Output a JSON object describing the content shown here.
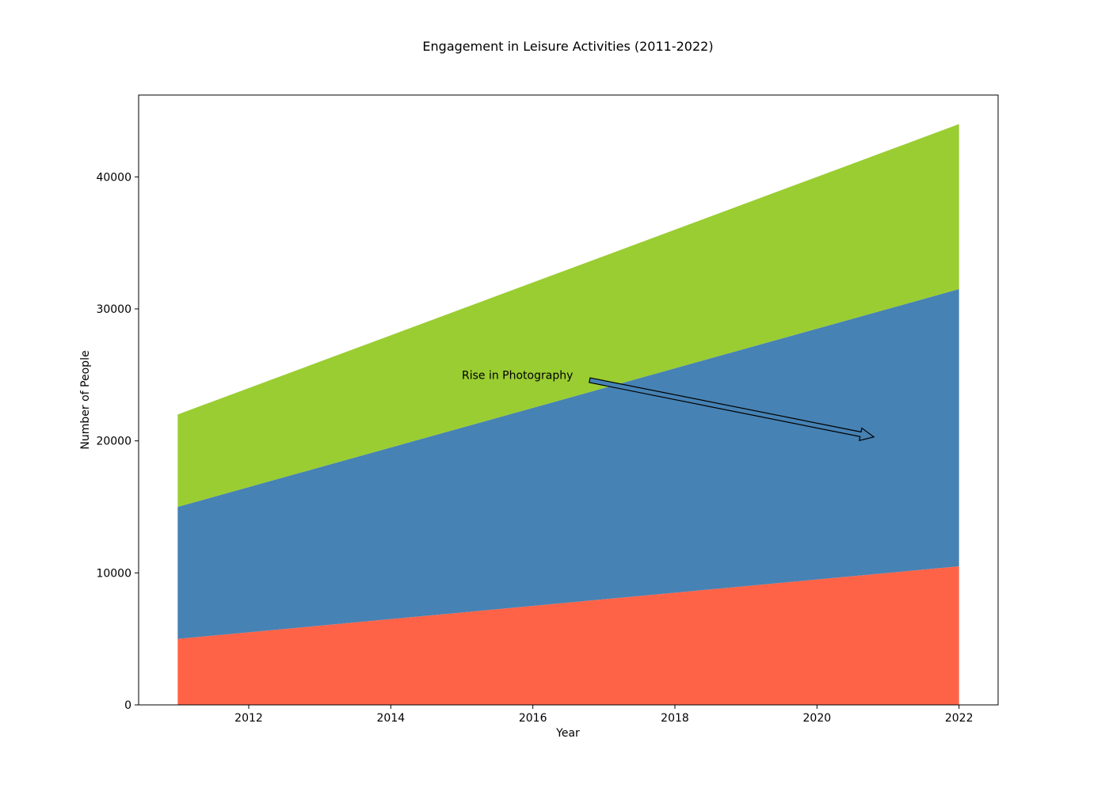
{
  "chart_data": {
    "type": "area",
    "stacked": true,
    "title": "Engagement in Leisure Activities (2011-2022)",
    "xlabel": "Year",
    "ylabel": "Number of People",
    "x": [
      2011,
      2012,
      2013,
      2014,
      2015,
      2016,
      2017,
      2018,
      2019,
      2020,
      2021,
      2022
    ],
    "xlim": [
      2010.45,
      2022.55
    ],
    "ylim": [
      0,
      46200
    ],
    "xticks": [
      2012,
      2014,
      2016,
      2018,
      2020,
      2022
    ],
    "yticks": [
      0,
      10000,
      20000,
      30000,
      40000
    ],
    "grid": false,
    "series": [
      {
        "color": "#FF6347",
        "values": [
          5000,
          5500,
          6000,
          6500,
          7000,
          7500,
          8000,
          8500,
          9000,
          9500,
          10000,
          10500
        ]
      },
      {
        "color": "#4682B4",
        "values": [
          10000,
          11000,
          12000,
          13000,
          14000,
          15000,
          16000,
          17000,
          18000,
          19000,
          20000,
          21000
        ]
      },
      {
        "color": "#9ACD32",
        "values": [
          7000,
          7500,
          8000,
          8500,
          9000,
          9500,
          10000,
          10500,
          11000,
          11500,
          12000,
          12500
        ]
      }
    ],
    "annotations": [
      {
        "text": "Rise in Photography",
        "text_at": [
          2015,
          25000
        ],
        "arrow_from": [
          2016.8,
          24600
        ],
        "arrow_to": [
          2020.8,
          20300
        ],
        "arrow_fill": "#4682B4"
      }
    ]
  }
}
